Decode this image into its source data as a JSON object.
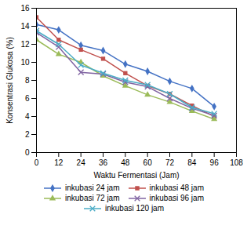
{
  "chart_data": {
    "type": "line",
    "x": [
      0,
      12,
      24,
      36,
      48,
      60,
      72,
      84,
      96
    ],
    "series": [
      {
        "name": "inkubasi 24 jam",
        "color": "#4472C4",
        "marker": "diamond",
        "values": [
          14.2,
          13.6,
          11.9,
          11.3,
          9.8,
          9.0,
          7.9,
          7.1,
          5.1
        ]
      },
      {
        "name": "inkubasi 48 jam",
        "color": "#C0504D",
        "marker": "square",
        "values": [
          15.0,
          12.5,
          11.4,
          10.4,
          8.8,
          7.4,
          6.5,
          5.2,
          4.0
        ]
      },
      {
        "name": "inkubasi 72 jam",
        "color": "#9BBB59",
        "marker": "triangle",
        "values": [
          12.5,
          10.9,
          10.0,
          8.5,
          7.4,
          6.4,
          5.6,
          4.6,
          3.7
        ]
      },
      {
        "name": "inkubasi 96 jam",
        "color": "#8064A2",
        "marker": "x",
        "values": [
          13.3,
          11.7,
          8.9,
          8.7,
          7.8,
          7.3,
          6.0,
          4.9,
          4.1
        ]
      },
      {
        "name": "inkubasi 120 jam",
        "color": "#4BACC6",
        "marker": "x",
        "values": [
          13.5,
          12.0,
          9.7,
          8.8,
          8.0,
          7.5,
          6.5,
          5.0,
          4.3
        ]
      }
    ],
    "xlabel": "Waktu Fermentasi (Jam)",
    "ylabel": "Konsentrasi Glukosa (%)",
    "xlim": [
      0,
      108
    ],
    "ylim": [
      0,
      16
    ],
    "xticks": [
      0,
      12,
      24,
      36,
      48,
      60,
      72,
      84,
      96,
      108
    ],
    "yticks": [
      0,
      2,
      4,
      6,
      8,
      10,
      12,
      14,
      16
    ],
    "grid": false,
    "legend": "bottom"
  }
}
